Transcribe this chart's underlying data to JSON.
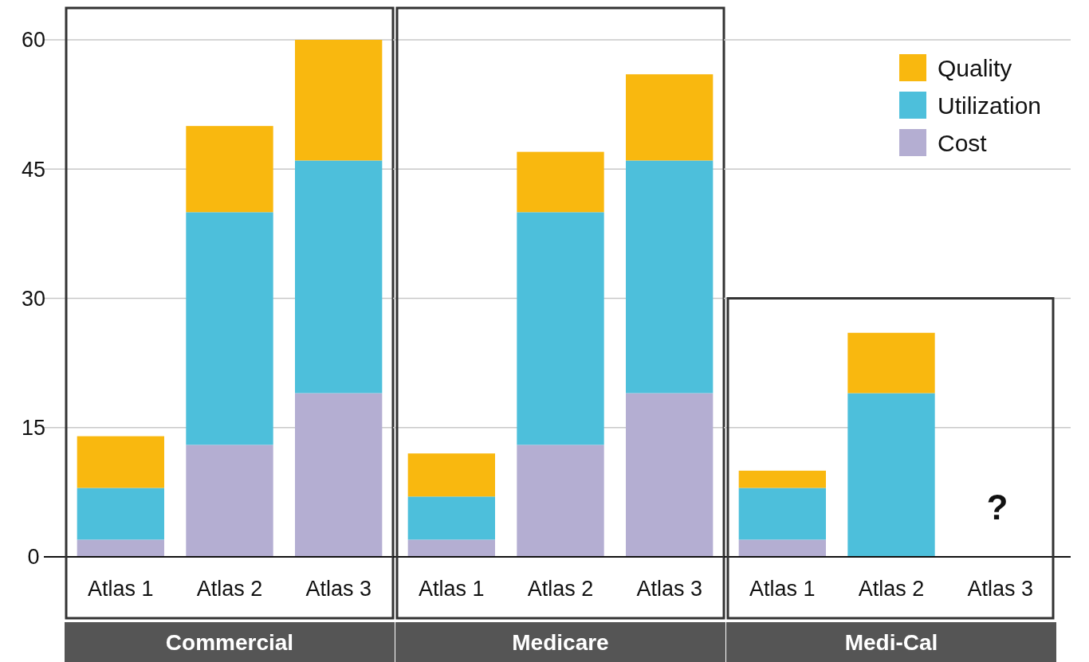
{
  "chart_data": [
    {
      "type": "bar",
      "stacked": true,
      "xlabel": "Commercial",
      "categories": [
        "Atlas 1",
        "Atlas 2",
        "Atlas 3"
      ],
      "ylim": [
        0,
        60
      ],
      "yticks": [
        0,
        15,
        30,
        45,
        60
      ],
      "grid": "y",
      "series": [
        {
          "color": "#b4aed2",
          "values": [
            2,
            13,
            19
          ]
        },
        {
          "color": "#4dbfdb",
          "values": [
            6,
            27,
            27
          ]
        },
        {
          "color": "#f9b80f",
          "values": [
            6,
            10,
            14
          ]
        }
      ]
    },
    {
      "type": "bar",
      "stacked": true,
      "xlabel": "Medicare",
      "categories": [
        "Atlas 1",
        "Atlas 2",
        "Atlas 3"
      ],
      "ylim": [
        0,
        60
      ],
      "yticks": [
        0,
        15,
        30,
        45,
        60
      ],
      "grid": "y",
      "tick_labels": "x",
      "series": [
        {
          "color": "#b4aed2",
          "values": [
            2,
            13,
            19
          ]
        },
        {
          "color": "#4dbfdb",
          "values": [
            5,
            27,
            27
          ]
        },
        {
          "color": "#f9b80f",
          "values": [
            5,
            7,
            10
          ]
        }
      ]
    },
    {
      "type": "bar",
      "stacked": true,
      "xlabel": "Medi-Cal",
      "categories": [
        "Atlas 1",
        "Atlas 2",
        "Atlas 3"
      ],
      "ylim": [
        0,
        60
      ],
      "yticks": [
        0,
        15,
        30,
        45,
        60
      ],
      "grid": "y",
      "tick_labels": "x",
      "legend": "top right",
      "annotations": [
        "?"
      ],
      "series": [
        {
          "name": "Cost",
          "color": "#b4aed2",
          "values": [
            2,
            null,
            null
          ]
        },
        {
          "name": "Utilization",
          "color": "#4dbfdb",
          "values": [
            6,
            19,
            null
          ]
        },
        {
          "name": "Quality",
          "color": "#f9b80f",
          "values": [
            2,
            7,
            null
          ]
        }
      ]
    }
  ]
}
